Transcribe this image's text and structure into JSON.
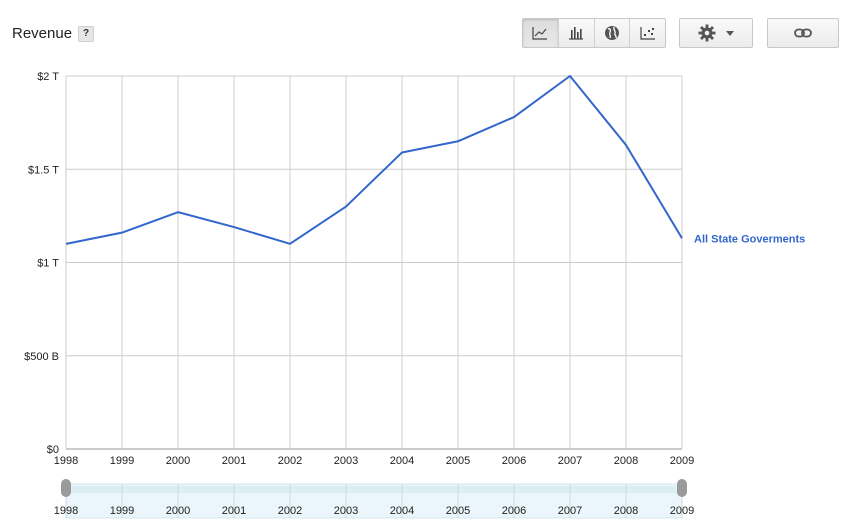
{
  "header": {
    "title": "Revenue",
    "help_label": "?"
  },
  "toolbar": {
    "chart_types": [
      {
        "name": "line-chart",
        "icon": "line-chart-icon",
        "active": true
      },
      {
        "name": "bar-chart",
        "icon": "bar-chart-icon",
        "active": false
      },
      {
        "name": "map",
        "icon": "globe-icon",
        "active": false
      },
      {
        "name": "scatter-chart",
        "icon": "scatter-chart-icon",
        "active": false
      }
    ],
    "settings_icon": "gear-icon",
    "dropdown_icon": "caret-down-icon",
    "link_icon": "link-icon"
  },
  "colors": {
    "series": "#3366cc",
    "grid": "#cccccc",
    "range_fill": "#eaf6fb",
    "range_handle": "#9a9a9a"
  },
  "chart_data": {
    "type": "line",
    "title": "",
    "xlabel": "",
    "ylabel": "",
    "x": [
      "1998",
      "1999",
      "2000",
      "2001",
      "2002",
      "2003",
      "2004",
      "2005",
      "2006",
      "2007",
      "2008",
      "2009"
    ],
    "ylim": [
      0,
      2000000000000
    ],
    "y_ticks": [
      {
        "value": 0,
        "label": "$0"
      },
      {
        "value": 500000000000,
        "label": "$500 B"
      },
      {
        "value": 1000000000000,
        "label": "$1 T"
      },
      {
        "value": 1500000000000,
        "label": "$1.5 T"
      },
      {
        "value": 2000000000000,
        "label": "$2 T"
      }
    ],
    "series": [
      {
        "name": "All State Goverments",
        "values": [
          1100000000000.0,
          1160000000000.0,
          1270000000000.0,
          1190000000000.0,
          1100000000000.0,
          1300000000000.0,
          1590000000000.0,
          1650000000000.0,
          1780000000000.0,
          2000000000000.0,
          1630000000000.0,
          1130000000000.0
        ]
      }
    ],
    "grid": true,
    "legend": "right-end-label",
    "range_selector": {
      "labels": [
        "1998",
        "1999",
        "2000",
        "2001",
        "2002",
        "2003",
        "2004",
        "2005",
        "2006",
        "2007",
        "2008",
        "2009"
      ]
    }
  }
}
